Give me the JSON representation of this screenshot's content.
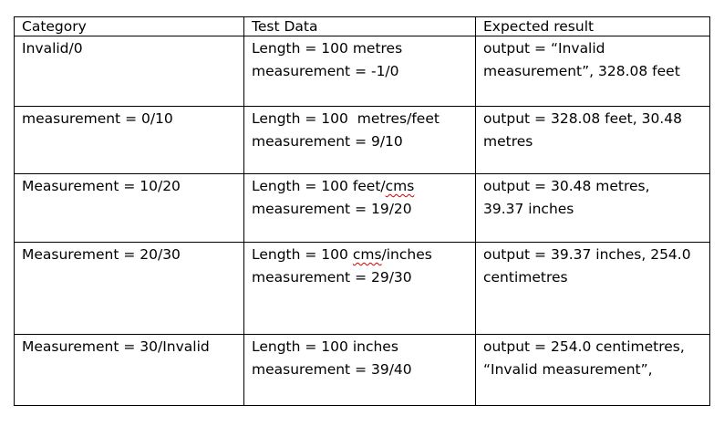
{
  "table": {
    "headers": [
      "Category",
      "Test Data",
      "Expected result"
    ],
    "rows": [
      {
        "category": "Invalid/0",
        "test_data": [
          "Length = 100 metres",
          "measurement = -1/0"
        ],
        "expected": [
          "output =  “Invalid",
          "measurement”, 328.08 feet"
        ]
      },
      {
        "category": "measurement = 0/10",
        "test_data": [
          "Length = 100  metres/feet",
          "measurement = 9/10"
        ],
        "expected": [
          "output = 328.08 feet, 30.48",
          "metres"
        ]
      },
      {
        "category": "Measurement = 10/20",
        "test_data_line1_prefix": "Length = 100 feet/",
        "test_data_line1_flagged": "cms",
        "test_data": [
          "Length = 100 feet/cms",
          "measurement = 19/20"
        ],
        "expected": [
          "output = 30.48 metres,",
          "39.37 inches"
        ]
      },
      {
        "category": "Measurement = 20/30",
        "test_data_line1_prefix": "Length = 100 ",
        "test_data_line1_flagged": "cms",
        "test_data_line1_suffix": "/inches",
        "test_data": [
          "Length = 100 cms/inches",
          "measurement = 29/30"
        ],
        "expected": [
          "output = 39.37 inches, 254.0",
          "centimetres"
        ]
      },
      {
        "category": "Measurement = 30/Invalid",
        "test_data": [
          "Length = 100 inches",
          "measurement = 39/40"
        ],
        "expected": [
          "output = 254.0 centimetres,",
          "“Invalid measurement”,"
        ]
      }
    ]
  },
  "spellcheck_color": "#d40000"
}
